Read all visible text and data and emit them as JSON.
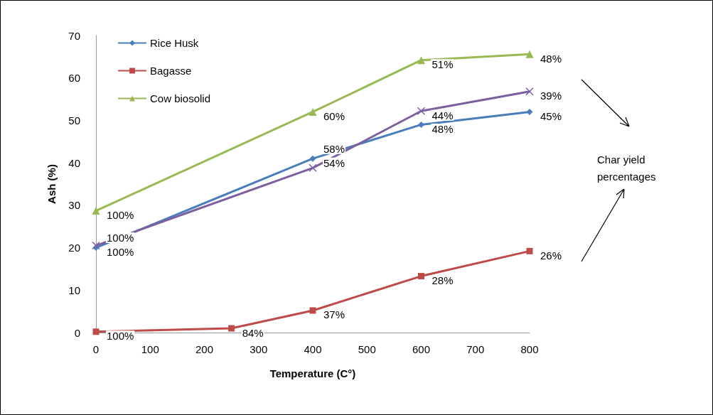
{
  "chart_data": {
    "type": "line",
    "xlabel": "Temperature (C°)",
    "ylabel": "Ash (%)",
    "xlim": [
      0,
      800
    ],
    "xticks": [
      0,
      100,
      200,
      300,
      400,
      500,
      600,
      700,
      800
    ],
    "ylim": [
      0,
      70
    ],
    "yticks": [
      0,
      10,
      20,
      30,
      40,
      50,
      60,
      70
    ],
    "grid": false,
    "legend": "top left",
    "annotations": [
      "Char yield percentages",
      {
        "text": "100%",
        "x": 0,
        "y": 20
      },
      {
        "text": "54%",
        "x": 400,
        "y": 41
      },
      {
        "text": "48%",
        "x": 600,
        "y": 49
      },
      {
        "text": "45%",
        "x": 800,
        "y": 52
      },
      {
        "text": "100%",
        "x": 0,
        "y": 0.2
      },
      {
        "text": "84%",
        "x": 250,
        "y": 1
      },
      {
        "text": "37%",
        "x": 400,
        "y": 5.2
      },
      {
        "text": "28%",
        "x": 600,
        "y": 13.3
      },
      {
        "text": "26%",
        "x": 800,
        "y": 19.2
      },
      {
        "text": "100%",
        "x": 0,
        "y": 28.7
      },
      {
        "text": "60%",
        "x": 400,
        "y": 52
      },
      {
        "text": "51%",
        "x": 600,
        "y": 64.2
      },
      {
        "text": "48%",
        "x": 800,
        "y": 65.6
      },
      {
        "text": "100%",
        "x": 0,
        "y": 20.5
      },
      {
        "text": "58%",
        "x": 400,
        "y": 38.8
      },
      {
        "text": "44%",
        "x": 600,
        "y": 52.2
      },
      {
        "text": "39%",
        "x": 800,
        "y": 56.8
      }
    ],
    "series": [
      {
        "name": "Rice Husk",
        "color": "#4a7ebb",
        "marker": "diamond",
        "x": [
          0,
          400,
          600,
          800
        ],
        "values": [
          20,
          41,
          49,
          52
        ]
      },
      {
        "name": "Bagasse",
        "color": "#be4b48",
        "marker": "square",
        "x": [
          0,
          250,
          400,
          600,
          800
        ],
        "values": [
          0.2,
          1,
          5.2,
          13.3,
          19.2
        ]
      },
      {
        "name": "Cow biosolid",
        "color": "#98b954",
        "marker": "triangle",
        "x": [
          0,
          400,
          600,
          800
        ],
        "values": [
          28.7,
          52,
          64.2,
          65.6
        ]
      },
      {
        "color": "#7d5fa0",
        "marker": "cross",
        "x": [
          0,
          400,
          600,
          800
        ],
        "values": [
          20.5,
          38.8,
          52.2,
          56.8
        ]
      }
    ]
  }
}
